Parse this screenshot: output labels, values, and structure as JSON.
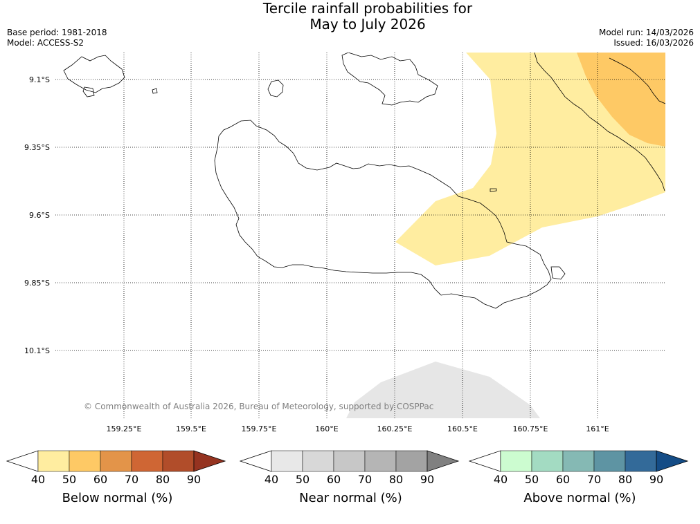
{
  "title": {
    "line1": "Tercile rainfall probabilities for",
    "line2": "May to July 2026"
  },
  "meta": {
    "base_period": "Base period: 1981-2018",
    "model": "Model: ACCESS-S2",
    "model_run": "Model run: 14/03/2026",
    "issued": "Issued: 16/03/2026"
  },
  "map": {
    "lat_labels": [
      "9.1°S",
      "9.35°S",
      "9.6°S",
      "9.85°S",
      "10.1°S"
    ],
    "lon_labels": [
      "159.25°E",
      "159.5°E",
      "159.75°E",
      "160°E",
      "160.25°E",
      "160.5°E",
      "160.75°E",
      "161°E"
    ],
    "copyright": "© Commonwealth of Australia 2026, Bureau of Meteorology, supported by COSPPac",
    "regions": [
      {
        "category": "below",
        "level": "40-50",
        "color": "#ffeda0"
      },
      {
        "category": "below",
        "level": "50-60",
        "color": "#fec965"
      },
      {
        "category": "near",
        "level": "40-50",
        "color": "#e6e6e6"
      }
    ]
  },
  "colorbars": [
    {
      "id": "below",
      "title": "Below normal (%)",
      "ticks": [
        "40",
        "50",
        "60",
        "70",
        "80",
        "90"
      ],
      "colors": [
        "#ffffff",
        "#ffeda0",
        "#fec965",
        "#e39449",
        "#cf6634",
        "#b14d2a",
        "#953320"
      ]
    },
    {
      "id": "near",
      "title": "Near normal (%)",
      "ticks": [
        "40",
        "50",
        "60",
        "70",
        "80",
        "90"
      ],
      "colors": [
        "#ffffff",
        "#e8e8e8",
        "#d8d8d8",
        "#c7c7c7",
        "#b5b5b5",
        "#a3a3a3",
        "#808080"
      ]
    },
    {
      "id": "above",
      "title": "Above normal (%)",
      "ticks": [
        "40",
        "50",
        "60",
        "70",
        "80",
        "90"
      ],
      "colors": [
        "#ffffff",
        "#ccfcd0",
        "#a3dbc2",
        "#85b9b4",
        "#5e94a3",
        "#336a99",
        "#144c86"
      ]
    }
  ]
}
